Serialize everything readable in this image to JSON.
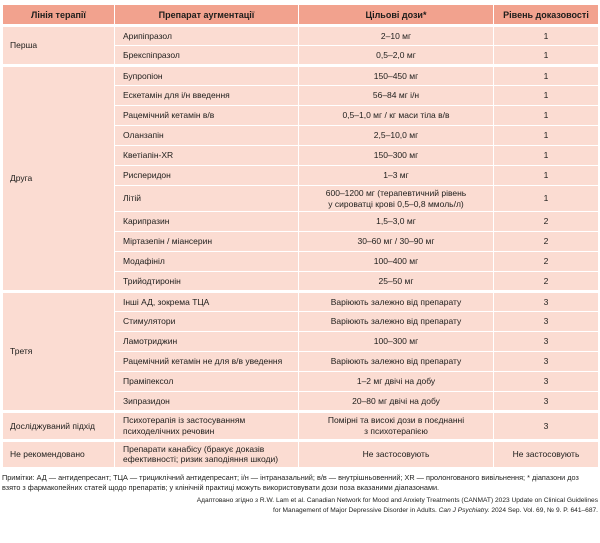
{
  "colors": {
    "header_bg": "#f2a28e",
    "body_bg": "#fbdcd2",
    "text": "#1d1d1b"
  },
  "table": {
    "columns": [
      "Лінія терапії",
      "Препарат аугментації",
      "Цільові дози*",
      "Рівень доказовості"
    ],
    "groups": [
      {
        "line": "Перша",
        "rows": [
          {
            "drug": "Арипіпразол",
            "dose": "2–10 мг",
            "evidence": "1"
          },
          {
            "drug": "Брекспіпразол",
            "dose": "0,5–2,0 мг",
            "evidence": "1"
          }
        ]
      },
      {
        "line": "Друга",
        "rows": [
          {
            "drug": "Бупропіон",
            "dose": "150–450 мг",
            "evidence": "1"
          },
          {
            "drug": "Ескетамін для і/н введення",
            "dose": "56–84 мг і/н",
            "evidence": "1"
          },
          {
            "drug": "Рацемічний кетамін в/в",
            "dose": "0,5–1,0 мг / кг маси тіла в/в",
            "evidence": "1"
          },
          {
            "drug": "Оланзапін",
            "dose": "2,5–10,0 мг",
            "evidence": "1"
          },
          {
            "drug": "Кветіапін-XR",
            "dose": "150–300 мг",
            "evidence": "1"
          },
          {
            "drug": "Рисперидон",
            "dose": "1–3 мг",
            "evidence": "1"
          },
          {
            "drug": "Літій",
            "dose": "600–1200 мг (терапевтичний рівень\nу сироватці крові 0,5–0,8 ммоль/л)",
            "evidence": "1"
          },
          {
            "drug": "Карипразин",
            "dose": "1,5–3,0 мг",
            "evidence": "2"
          },
          {
            "drug": "Міртазепін / міансерин",
            "dose": "30–60 мг / 30–90 мг",
            "evidence": "2"
          },
          {
            "drug": "Модафініл",
            "dose": "100–400 мг",
            "evidence": "2"
          },
          {
            "drug": "Трийодтиронін",
            "dose": "25–50 мг",
            "evidence": "2"
          }
        ]
      },
      {
        "line": "Третя",
        "rows": [
          {
            "drug": "Інші АД, зокрема ТЦА",
            "dose": "Варіюють залежно від препарату",
            "evidence": "3"
          },
          {
            "drug": "Стимулятори",
            "dose": "Варіюють залежно від препарату",
            "evidence": "3"
          },
          {
            "drug": "Ламотриджин",
            "dose": "100–300 мг",
            "evidence": "3"
          },
          {
            "drug": "Рацемічний кетамін не для в/в уведення",
            "dose": "Варіюють залежно від препарату",
            "evidence": "3"
          },
          {
            "drug": "Праміпексол",
            "dose": "1–2 мг двічі на добу",
            "evidence": "3"
          },
          {
            "drug": "Зипразидон",
            "dose": "20–80 мг двічі на добу",
            "evidence": "3"
          }
        ]
      },
      {
        "line": "Досліджуваний підхід",
        "rows": [
          {
            "drug": "Психотерапія із застосуванням\nпсиходелічних речовин",
            "dose": "Помірні та високі дози в поєднанні\nз психотерапією",
            "evidence": "3"
          }
        ]
      },
      {
        "line": "Не рекомендовано",
        "rows": [
          {
            "drug": "Препарати канабісу (бракує доказів\nефективності; ризик заподіяння шкоди)",
            "dose": "Не застосовують",
            "evidence": "Не застосовують"
          }
        ]
      }
    ]
  },
  "footnotes": {
    "notes": "Примітки: АД — антидепресант; ТЦА — трициклічний антидепресант; і/н — інтраназальний; в/в — внутрішньовенний; XR — пролонгованого вивільнення; * діапазони доз\nвзято з фармакопейних статей щодо препаратів; у клінічній практиці можуть використовувати дози поза вказаними діапазонами.",
    "credit_prefix": "Адаптовано згідно з R.W. Lam et al. Canadian Network for Mood and Anxiety Treatments (CANMAT) 2023 Update on Clinical Guidelines\nfor Management of Major Depressive Disorder in Adults. ",
    "credit_italic": "Can J Psychiatry.",
    "credit_suffix": " 2024 Sep. Vol. 69, № 9. P. 641–687."
  }
}
